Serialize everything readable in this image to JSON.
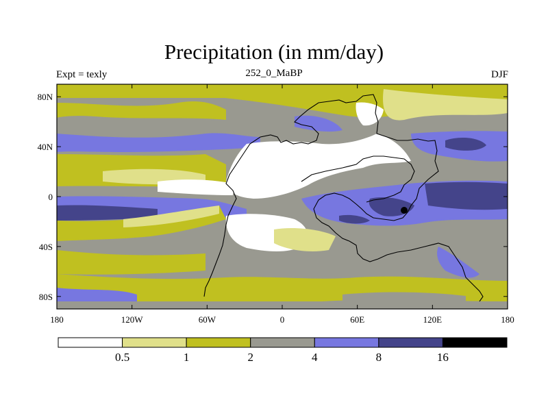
{
  "title": "Precipitation (in mm/day)",
  "subtitle_left": "Expt = texly",
  "subtitle_center": "252_0_MaBP",
  "subtitle_right": "DJF",
  "colors": {
    "c0": "#ffffff",
    "c1": "#e0e08a",
    "c2": "#c0c020",
    "c3": "#999990",
    "c4": "#7777e0",
    "c5": "#44448a",
    "c6": "#000000"
  },
  "chart_data": {
    "type": "heatmap",
    "title": "Precipitation (in mm/day)",
    "x_ticks": [
      "180",
      "120W",
      "60W",
      "0",
      "60E",
      "120E",
      "180"
    ],
    "x_values": [
      -180,
      -120,
      -60,
      0,
      60,
      120,
      180
    ],
    "y_ticks": [
      "80N",
      "40N",
      "0",
      "40S",
      "80S"
    ],
    "y_values": [
      80,
      40,
      0,
      -40,
      -80
    ],
    "xlim": [
      -180,
      180
    ],
    "ylim": [
      -90,
      90
    ],
    "colorbar": {
      "labels": [
        "0.5",
        "1",
        "2",
        "4",
        "8",
        "16"
      ],
      "thresholds": [
        0.5,
        1,
        2,
        4,
        8,
        16
      ],
      "bins": [
        "<0.5",
        "0.5-1",
        "1-2",
        "2-4",
        "4-8",
        "8-16",
        ">16"
      ]
    }
  }
}
